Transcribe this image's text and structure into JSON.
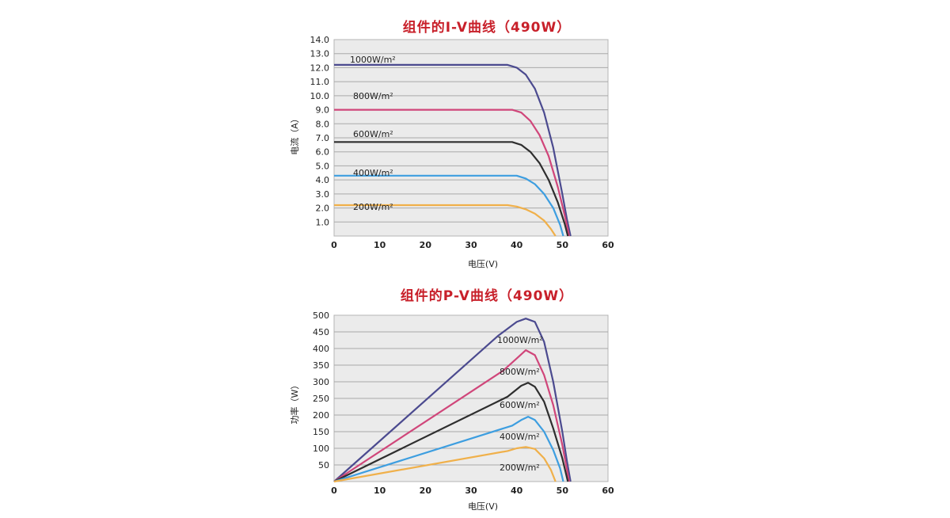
{
  "chart_data": [
    {
      "type": "line",
      "title": "组件的I-V曲线（490W）",
      "xlabel": "电压(V)",
      "ylabel": "电流（A）",
      "xlim": [
        0,
        60
      ],
      "ylim": [
        0,
        14
      ],
      "x_ticks": [
        "0",
        "10",
        "20",
        "30",
        "40",
        "50",
        "60"
      ],
      "y_ticks": [
        "1.0",
        "2.0",
        "3.0",
        "4.0",
        "5.0",
        "6.0",
        "7.0",
        "8.0",
        "9.0",
        "10.0",
        "11.0",
        "12.0",
        "13.0",
        "14.0"
      ],
      "grid": true,
      "series": [
        {
          "name": "1000W/m²",
          "color": "#4b4a8f",
          "points": [
            [
              0,
              12.2
            ],
            [
              38,
              12.2
            ],
            [
              40,
              12.0
            ],
            [
              42,
              11.5
            ],
            [
              44,
              10.5
            ],
            [
              46,
              8.8
            ],
            [
              48,
              6.3
            ],
            [
              50,
              3.0
            ],
            [
              51,
              1.2
            ],
            [
              51.8,
              0
            ]
          ]
        },
        {
          "name": "800W/m²",
          "color": "#d0467a",
          "points": [
            [
              0,
              9.0
            ],
            [
              39,
              9.0
            ],
            [
              41,
              8.8
            ],
            [
              43,
              8.2
            ],
            [
              45,
              7.2
            ],
            [
              47,
              5.7
            ],
            [
              49,
              3.5
            ],
            [
              50.5,
              1.5
            ],
            [
              51.5,
              0
            ]
          ]
        },
        {
          "name": "600W/m²",
          "color": "#2e2e2e",
          "points": [
            [
              0,
              6.7
            ],
            [
              39,
              6.7
            ],
            [
              41,
              6.5
            ],
            [
              43,
              6.0
            ],
            [
              45,
              5.2
            ],
            [
              47,
              4.0
            ],
            [
              49,
              2.4
            ],
            [
              50.5,
              0.9
            ],
            [
              51.2,
              0
            ]
          ]
        },
        {
          "name": "400W/m²",
          "color": "#3d9ee0",
          "points": [
            [
              0,
              4.3
            ],
            [
              40,
              4.3
            ],
            [
              42,
              4.1
            ],
            [
              44,
              3.7
            ],
            [
              46,
              3.0
            ],
            [
              48,
              2.0
            ],
            [
              49.5,
              0.8
            ],
            [
              50.2,
              0
            ]
          ]
        },
        {
          "name": "200W/m²",
          "color": "#f0b04a",
          "points": [
            [
              0,
              2.2
            ],
            [
              38,
              2.2
            ],
            [
              40,
              2.1
            ],
            [
              42,
              1.9
            ],
            [
              44,
              1.6
            ],
            [
              46,
              1.1
            ],
            [
              47.5,
              0.5
            ],
            [
              48.5,
              0
            ]
          ]
        }
      ]
    },
    {
      "type": "line",
      "title": "组件的P-V曲线（490W）",
      "xlabel": "电压(V)",
      "ylabel": "功率（W）",
      "xlim": [
        0,
        60
      ],
      "ylim": [
        0,
        500
      ],
      "x_ticks": [
        "0",
        "10",
        "20",
        "30",
        "40",
        "50",
        "60"
      ],
      "y_ticks": [
        "50",
        "100",
        "150",
        "200",
        "250",
        "300",
        "350",
        "400",
        "450",
        "500"
      ],
      "grid": true,
      "series": [
        {
          "name": "1000W/m²",
          "color": "#4b4a8f",
          "points": [
            [
              0,
              0
            ],
            [
              36,
              439
            ],
            [
              40,
              480
            ],
            [
              42,
              490
            ],
            [
              44,
              480
            ],
            [
              46,
              420
            ],
            [
              48,
              300
            ],
            [
              50,
              150
            ],
            [
              51,
              62
            ],
            [
              51.8,
              0
            ]
          ]
        },
        {
          "name": "800W/m²",
          "color": "#d0467a",
          "points": [
            [
              0,
              0
            ],
            [
              37,
              333
            ],
            [
              40,
              370
            ],
            [
              42,
              395
            ],
            [
              44,
              380
            ],
            [
              46,
              320
            ],
            [
              48,
              230
            ],
            [
              50,
              110
            ],
            [
              51.5,
              0
            ]
          ]
        },
        {
          "name": "600W/m²",
          "color": "#2e2e2e",
          "points": [
            [
              0,
              0
            ],
            [
              38,
              255
            ],
            [
              41,
              288
            ],
            [
              42.5,
              297
            ],
            [
              44,
              285
            ],
            [
              46,
              240
            ],
            [
              48,
              160
            ],
            [
              50,
              70
            ],
            [
              51.2,
              0
            ]
          ]
        },
        {
          "name": "400W/m²",
          "color": "#3d9ee0",
          "points": [
            [
              0,
              0
            ],
            [
              39,
              168
            ],
            [
              41,
              185
            ],
            [
              42.5,
              195
            ],
            [
              44,
              185
            ],
            [
              46,
              150
            ],
            [
              48,
              95
            ],
            [
              49.5,
              40
            ],
            [
              50.2,
              0
            ]
          ]
        },
        {
          "name": "200W/m²",
          "color": "#f0b04a",
          "points": [
            [
              0,
              0
            ],
            [
              38,
              92
            ],
            [
              40,
              100
            ],
            [
              42,
              104
            ],
            [
              44,
              98
            ],
            [
              46,
              70
            ],
            [
              47.5,
              35
            ],
            [
              48.5,
              0
            ]
          ]
        }
      ]
    }
  ]
}
